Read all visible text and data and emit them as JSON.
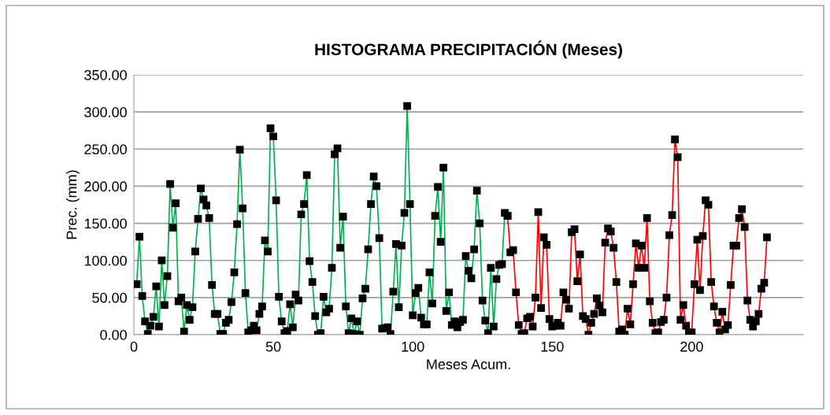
{
  "chart_data": {
    "type": "line",
    "title": "HISTOGRAMA PRECIPITACIÓN (Meses)",
    "xlabel": "Meses Acum.",
    "ylabel": "Prec. (mm)",
    "xlim": [
      0,
      240
    ],
    "xticks": [
      0,
      50,
      100,
      150,
      200
    ],
    "ylim": [
      0,
      350
    ],
    "yticks": [
      {
        "value": 0,
        "label": "0.00"
      },
      {
        "value": 50,
        "label": "50.00"
      },
      {
        "value": 100,
        "label": "100.00"
      },
      {
        "value": 150,
        "label": "150.00"
      },
      {
        "value": 200,
        "label": "200.00"
      },
      {
        "value": 250,
        "label": "250.00"
      },
      {
        "value": 300,
        "label": "300.00"
      },
      {
        "value": 350,
        "label": "350.00"
      }
    ],
    "grid": "y",
    "marker": "square",
    "line_style": "solid",
    "legend": false,
    "series": [
      {
        "color": "#00b050",
        "x": [
          1,
          2,
          3,
          4,
          5,
          6,
          7,
          8,
          9,
          10,
          11,
          12,
          13,
          14,
          15,
          16,
          17,
          18,
          19,
          20,
          21,
          22,
          23,
          24,
          25,
          26,
          27,
          28,
          29,
          30,
          31,
          32,
          33,
          34,
          35,
          36,
          37,
          38,
          39,
          40,
          41,
          42,
          43,
          44,
          45,
          46,
          47,
          48,
          49,
          50,
          51,
          52,
          53,
          54,
          55,
          56,
          57,
          58,
          59,
          60,
          61,
          62,
          63,
          64,
          65,
          66,
          67,
          68,
          69,
          70,
          71,
          72,
          73,
          74,
          75,
          76,
          77,
          78,
          79,
          80,
          81,
          82,
          83,
          84,
          85,
          86,
          87,
          88,
          89,
          90,
          91,
          92,
          93,
          94,
          95,
          96,
          97,
          98,
          99,
          100,
          101,
          102,
          103,
          104,
          105,
          106,
          107,
          108,
          109,
          110,
          111,
          112,
          113,
          114,
          115,
          116,
          117,
          118,
          119,
          120,
          121,
          122,
          123,
          124,
          125,
          126,
          127,
          128,
          129,
          130,
          131,
          132,
          133,
          134
        ],
        "values": [
          68,
          132,
          52,
          18,
          1,
          12,
          24,
          65,
          11,
          100,
          40,
          79,
          203,
          144,
          177,
          45,
          50,
          4,
          40,
          20,
          37,
          112,
          156,
          197,
          182,
          174,
          157,
          67,
          28,
          28,
          1,
          1,
          16,
          20,
          44,
          84,
          149,
          249,
          170,
          56,
          3,
          6,
          12,
          6,
          28,
          38,
          127,
          112,
          278,
          267,
          181,
          51,
          18,
          2,
          5,
          41,
          10,
          54,
          46,
          162,
          176,
          215,
          99,
          71,
          25,
          0,
          2,
          51,
          30,
          35,
          90,
          243,
          251,
          117,
          159,
          38,
          2,
          22,
          1,
          18,
          0,
          49,
          62,
          115,
          176,
          213,
          200,
          130,
          8,
          9,
          10,
          1,
          58,
          122,
          37,
          120,
          164,
          308,
          176,
          26,
          56,
          63,
          23,
          14,
          14,
          84,
          42,
          160,
          199,
          125,
          225,
          32,
          57,
          13,
          18,
          10,
          17,
          20,
          106,
          86,
          76,
          115,
          194,
          150,
          46,
          19,
          2,
          90,
          11,
          75,
          94,
          95,
          164,
          160
        ]
      },
      {
        "color": "#ff0000",
        "x": [
          134,
          135,
          136,
          137,
          138,
          139,
          140,
          141,
          142,
          143,
          144,
          145,
          146,
          147,
          148,
          149,
          150,
          151,
          152,
          153,
          154,
          155,
          156,
          157,
          158,
          159,
          160,
          161,
          162,
          163,
          164,
          165,
          166,
          167,
          168,
          169,
          170,
          171,
          172,
          173,
          174,
          175,
          176,
          177,
          178,
          179,
          180,
          181,
          182,
          183,
          184,
          185,
          186,
          187,
          188,
          189,
          190,
          191,
          192,
          193,
          194,
          195,
          196,
          197,
          198,
          199,
          200,
          201,
          202,
          203,
          204,
          205,
          206,
          207,
          208,
          209,
          210,
          211,
          212,
          213,
          214,
          215,
          216,
          217,
          218,
          219,
          220,
          221,
          222,
          223,
          224,
          225,
          226,
          227
        ],
        "values": [
          160,
          111,
          114,
          57,
          13,
          1,
          2,
          22,
          24,
          11,
          50,
          165,
          36,
          131,
          121,
          21,
          11,
          12,
          16,
          12,
          57,
          47,
          35,
          138,
          142,
          72,
          108,
          25,
          21,
          0,
          16,
          28,
          49,
          39,
          30,
          124,
          143,
          139,
          117,
          71,
          4,
          7,
          0,
          35,
          14,
          68,
          123,
          90,
          120,
          90,
          157,
          45,
          16,
          2,
          3,
          17,
          20,
          50,
          134,
          161,
          263,
          239,
          20,
          40,
          12,
          3,
          3,
          68,
          128,
          60,
          133,
          181,
          175,
          71,
          38,
          16,
          3,
          31,
          7,
          13,
          67,
          120,
          120,
          157,
          169,
          145,
          46,
          20,
          11,
          18,
          28,
          62,
          70,
          131
        ]
      }
    ]
  }
}
